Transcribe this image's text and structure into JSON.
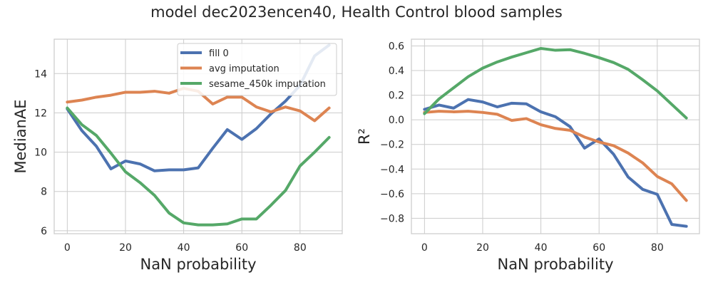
{
  "figure": {
    "suptitle": "model dec2023encen40, Health Control blood samples"
  },
  "chart_data": [
    {
      "type": "line",
      "title": "",
      "xlabel": "NaN probability",
      "ylabel": "MedianAE",
      "xlim": [
        -4.5,
        94.5
      ],
      "ylim": [
        5.85,
        15.75
      ],
      "xticks": [
        0,
        20,
        40,
        60,
        80
      ],
      "yticks": [
        6,
        8,
        10,
        12,
        14
      ],
      "grid": true,
      "legend": "top-right",
      "x": [
        0,
        5,
        10,
        15,
        20,
        25,
        30,
        35,
        40,
        45,
        50,
        55,
        60,
        65,
        70,
        75,
        80,
        85,
        90
      ],
      "series": [
        {
          "name": "fill 0",
          "color": "#4C72B0",
          "values": [
            12.2,
            11.1,
            10.3,
            9.15,
            9.55,
            9.4,
            9.05,
            9.1,
            9.1,
            9.2,
            10.2,
            11.15,
            10.65,
            11.2,
            11.95,
            12.6,
            13.4,
            14.9,
            15.45
          ]
        },
        {
          "name": "avg imputation",
          "color": "#DD8452",
          "values": [
            12.55,
            12.65,
            12.8,
            12.9,
            13.05,
            13.05,
            13.1,
            13.0,
            13.25,
            13.1,
            12.45,
            12.8,
            12.8,
            12.3,
            12.05,
            12.3,
            12.1,
            11.6,
            12.25
          ]
        },
        {
          "name": "sesame_450k imputation",
          "color": "#55A868",
          "values": [
            12.25,
            11.4,
            10.85,
            9.95,
            9.0,
            8.45,
            7.8,
            6.9,
            6.4,
            6.3,
            6.3,
            6.35,
            6.6,
            6.6,
            7.3,
            8.05,
            9.3,
            10.0,
            10.75
          ]
        }
      ]
    },
    {
      "type": "line",
      "title": "",
      "xlabel": "NaN probability",
      "ylabel": "R²",
      "xlim": [
        -4.5,
        94.5
      ],
      "ylim": [
        -0.925,
        0.655
      ],
      "xticks": [
        0,
        20,
        40,
        60,
        80
      ],
      "yticks": [
        0.6,
        0.4,
        0.2,
        0.0,
        -0.2,
        -0.4,
        -0.6,
        -0.8
      ],
      "ytick_labels": [
        "0.6",
        "0.4",
        "0.2",
        "0.0",
        "−0.2",
        "−0.4",
        "−0.6",
        "−0.8"
      ],
      "grid": true,
      "legend": "none",
      "x": [
        0,
        5,
        10,
        15,
        20,
        25,
        30,
        35,
        40,
        45,
        50,
        55,
        60,
        65,
        70,
        75,
        80,
        85,
        90
      ],
      "series": [
        {
          "color": "#4C72B0",
          "values": [
            0.085,
            0.12,
            0.095,
            0.165,
            0.145,
            0.105,
            0.135,
            0.13,
            0.065,
            0.025,
            -0.055,
            -0.23,
            -0.155,
            -0.28,
            -0.465,
            -0.565,
            -0.605,
            -0.85,
            -0.865
          ]
        },
        {
          "color": "#DD8452",
          "values": [
            0.06,
            0.07,
            0.065,
            0.07,
            0.06,
            0.045,
            -0.005,
            0.01,
            -0.04,
            -0.07,
            -0.085,
            -0.14,
            -0.18,
            -0.21,
            -0.27,
            -0.35,
            -0.46,
            -0.52,
            -0.655
          ]
        },
        {
          "color": "#55A868",
          "values": [
            0.05,
            0.17,
            0.26,
            0.35,
            0.42,
            0.47,
            0.51,
            0.545,
            0.58,
            0.565,
            0.57,
            0.54,
            0.505,
            0.465,
            0.41,
            0.325,
            0.235,
            0.125,
            0.015
          ]
        }
      ]
    }
  ]
}
